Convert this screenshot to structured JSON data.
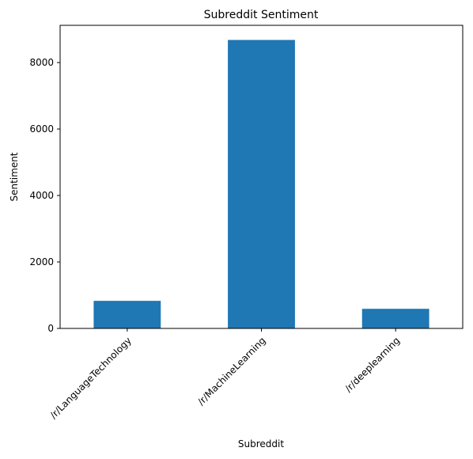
{
  "chart_data": {
    "type": "bar",
    "title": "Subreddit Sentiment",
    "xlabel": "Subreddit",
    "ylabel": "Sentiment",
    "categories": [
      "/r/LanguageTechnology",
      "/r/MachineLearning",
      "/r/deeplearning"
    ],
    "values": [
      830,
      8680,
      590
    ],
    "ylim": [
      0,
      9120
    ],
    "yticks": [
      0,
      2000,
      4000,
      6000,
      8000
    ],
    "grid": false,
    "colors": {
      "bar": "#1f77b4"
    }
  }
}
